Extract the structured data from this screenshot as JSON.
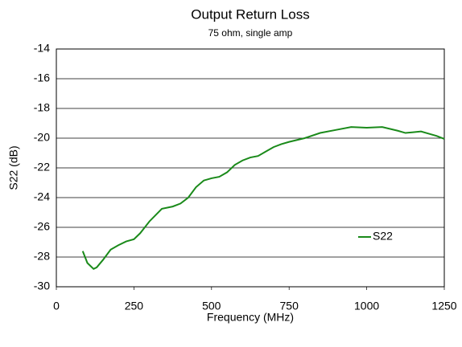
{
  "chart_data": {
    "type": "line",
    "title": "Output Return Loss",
    "subtitle": "75 ohm, single amp",
    "xlabel": "Frequency (MHz)",
    "ylabel": "S22 (dB)",
    "x": [
      85,
      100,
      120,
      130,
      150,
      175,
      200,
      225,
      250,
      270,
      300,
      340,
      375,
      400,
      425,
      450,
      475,
      500,
      525,
      550,
      575,
      600,
      625,
      650,
      675,
      700,
      725,
      750,
      800,
      850,
      900,
      950,
      1000,
      1050,
      1100,
      1125,
      1150,
      1175,
      1200,
      1225,
      1250
    ],
    "series": [
      {
        "name": "S22",
        "color": "#1a8a1a",
        "values": [
          -27.6,
          -28.4,
          -28.8,
          -28.7,
          -28.2,
          -27.5,
          -27.2,
          -26.95,
          -26.8,
          -26.4,
          -25.6,
          -24.75,
          -24.6,
          -24.4,
          -24.0,
          -23.3,
          -22.85,
          -22.7,
          -22.6,
          -22.3,
          -21.8,
          -21.5,
          -21.3,
          -21.2,
          -20.9,
          -20.6,
          -20.4,
          -20.25,
          -20.0,
          -19.65,
          -19.45,
          -19.25,
          -19.3,
          -19.25,
          -19.5,
          -19.65,
          -19.6,
          -19.55,
          -19.7,
          -19.85,
          -20.05
        ]
      }
    ],
    "xlim": [
      0,
      1250
    ],
    "xticks": [
      0,
      250,
      500,
      750,
      1000,
      1250
    ],
    "ylim": [
      -30,
      -14
    ],
    "yticks": [
      -30,
      -28,
      -26,
      -24,
      -22,
      -20,
      -18,
      -16,
      -14
    ],
    "grid": true,
    "legend": "lower right"
  }
}
